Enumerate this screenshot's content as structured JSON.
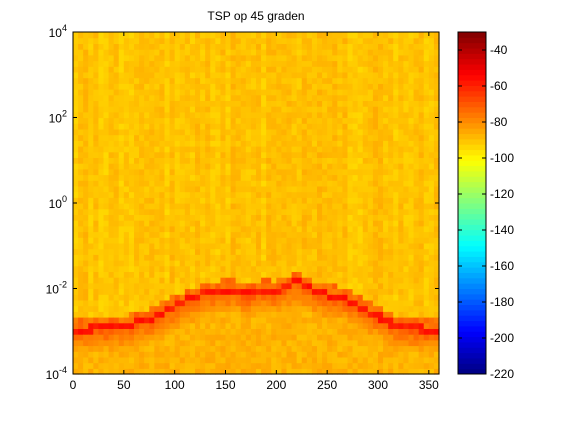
{
  "chart_data": {
    "type": "heatmap",
    "title": "TSP op 45 graden",
    "xlabel": "",
    "ylabel": "",
    "xlim": [
      0,
      360
    ],
    "ylim": [
      0.0001,
      10000
    ],
    "yscale": "log",
    "x_ticks": [
      0,
      50,
      100,
      150,
      200,
      250,
      300,
      350
    ],
    "y_ticks": [
      {
        "value": 0.0001,
        "base": "10",
        "exp": "-4"
      },
      {
        "value": 0.01,
        "base": "10",
        "exp": "-2"
      },
      {
        "value": 1,
        "base": "10",
        "exp": "0"
      },
      {
        "value": 100,
        "base": "10",
        "exp": "2"
      },
      {
        "value": 10000,
        "base": "10",
        "exp": "4"
      }
    ],
    "colorbar": {
      "min": -220,
      "max": -30,
      "ticks": [
        -40,
        -60,
        -80,
        -100,
        -120,
        -140,
        -160,
        -180,
        -200,
        -220
      ],
      "colormap": "jet"
    },
    "background_level": -90,
    "ridge": {
      "description_values": "frequency of the red ridge per angle",
      "angles": [
        0,
        20,
        40,
        60,
        80,
        100,
        120,
        130,
        140,
        150,
        160,
        170,
        180,
        190,
        200,
        210,
        220,
        230,
        240,
        250,
        260,
        270,
        280,
        290,
        300,
        310,
        320,
        330,
        340,
        350,
        360
      ],
      "values": [
        0.00095,
        0.001,
        0.0011,
        0.0013,
        0.0019,
        0.0035,
        0.0055,
        0.0068,
        0.0078,
        0.008,
        0.0085,
        0.0062,
        0.0075,
        0.0082,
        0.0075,
        0.0095,
        0.014,
        0.0095,
        0.007,
        0.0063,
        0.0058,
        0.0048,
        0.0035,
        0.0026,
        0.002,
        0.0014,
        0.0012,
        0.00105,
        0.001,
        0.00095,
        0.00095
      ],
      "level": -55
    },
    "bins": {
      "columns": 72,
      "rows": 60
    }
  }
}
